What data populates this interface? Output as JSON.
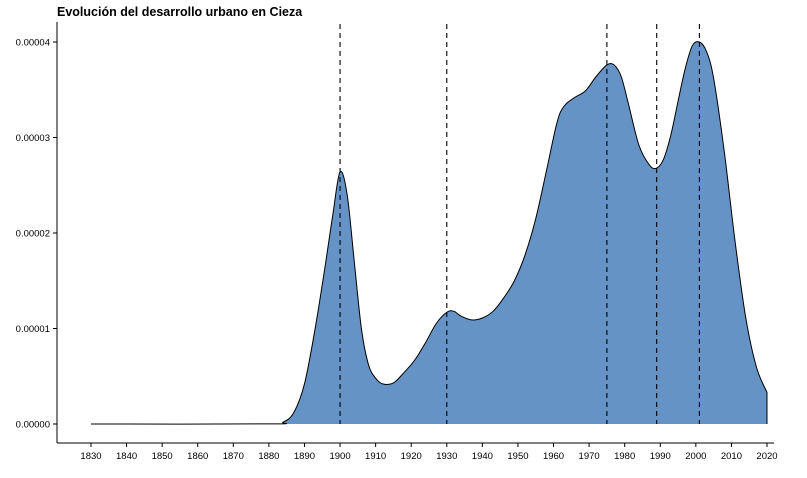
{
  "chart_data": {
    "type": "area",
    "title": "Evolución del desarrollo urbano en Cieza",
    "xlabel": "",
    "ylabel": "",
    "xlim": [
      1830,
      2020
    ],
    "ylim": [
      0,
      4e-05
    ],
    "x_ticks": [
      1830,
      1840,
      1850,
      1860,
      1870,
      1880,
      1890,
      1900,
      1910,
      1920,
      1930,
      1940,
      1950,
      1960,
      1970,
      1980,
      1990,
      2000,
      2010,
      2020
    ],
    "y_ticks": [
      0,
      1e-05,
      2e-05,
      3e-05,
      4e-05
    ],
    "y_tick_labels": [
      "0.00000",
      "0.00001",
      "0.00002",
      "0.00003",
      "0.00004"
    ],
    "vlines": [
      1900,
      1930,
      1975,
      1989,
      2001
    ],
    "fill_color": "#6593c6",
    "line_color": "#000000",
    "grid": false,
    "x": [
      1830,
      1880,
      1884,
      1887,
      1890,
      1893,
      1896,
      1898,
      1900,
      1902,
      1904,
      1906,
      1908,
      1910,
      1912,
      1915,
      1918,
      1921,
      1924,
      1927,
      1930,
      1932,
      1934,
      1937,
      1940,
      1943,
      1946,
      1949,
      1952,
      1955,
      1958,
      1961,
      1963,
      1966,
      1969,
      1972,
      1975,
      1977,
      1979,
      1981,
      1984,
      1987,
      1989,
      1991,
      1993,
      1995,
      1997,
      1999,
      2001,
      2003,
      2005,
      2008,
      2011,
      2014,
      2017,
      2020
    ],
    "values": [
      0,
      1e-08,
      2e-07,
      1.2e-06,
      4.2e-06,
      1e-05,
      1.7e-05,
      2.2e-05,
      2.64e-05,
      2.4e-05,
      1.7e-05,
      1e-05,
      6.2e-06,
      4.8e-06,
      4.2e-06,
      4.3e-06,
      5.4e-06,
      6.7e-06,
      8.5e-06,
      1.05e-05,
      1.17e-05,
      1.18e-05,
      1.13e-05,
      1.09e-05,
      1.11e-05,
      1.18e-05,
      1.32e-05,
      1.5e-05,
      1.77e-05,
      2.15e-05,
      2.65e-05,
      3.16e-05,
      3.33e-05,
      3.42e-05,
      3.49e-05,
      3.64e-05,
      3.76e-05,
      3.76e-05,
      3.64e-05,
      3.36e-05,
      2.92e-05,
      2.71e-05,
      2.68e-05,
      2.78e-05,
      3.03e-05,
      3.38e-05,
      3.72e-05,
      3.96e-05,
      4e-05,
      3.9e-05,
      3.62e-05,
      2.85e-05,
      1.92e-05,
      1.12e-05,
      6e-06,
      3.3e-06
    ]
  }
}
